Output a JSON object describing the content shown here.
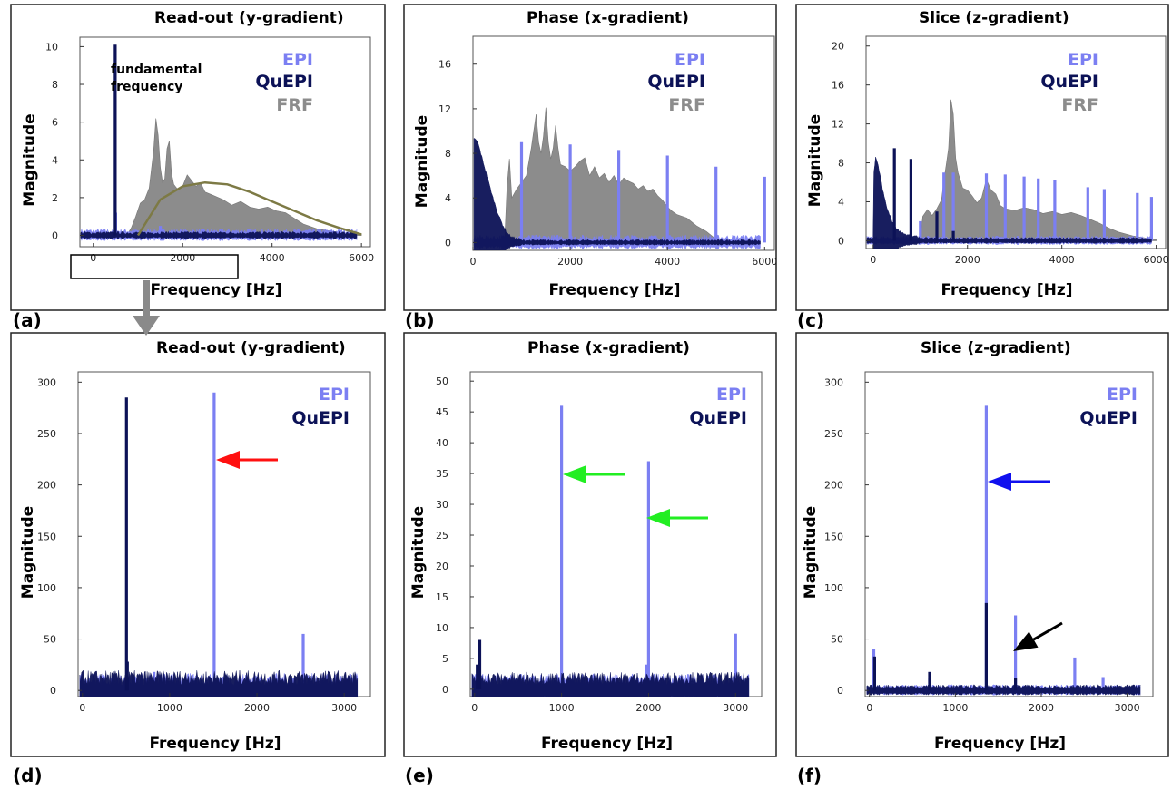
{
  "panel_letters": [
    "(a)",
    "(b)",
    "(c)",
    "(d)",
    "(e)",
    "(f)"
  ],
  "colors": {
    "epi": "#7b7ff2",
    "quepi": "#0c1257",
    "frf": "#8c8c8c",
    "fit": "#7d7a45",
    "red_arrow": "#ff1010",
    "green_arrow": "#22ee22",
    "blue_arrow": "#1010ee",
    "black_arrow": "#000000",
    "zoom_arrow": "#8a8a8a"
  },
  "chart_data": [
    {
      "panel": "(a)",
      "type": "area",
      "title": "Read-out (y-gradient)",
      "xlabel": "Frequency [Hz]",
      "ylabel": "Magnitude",
      "xlim": [
        -300,
        6200
      ],
      "x_ticks": [
        0,
        2000,
        4000,
        6000
      ],
      "y_ticks": [
        0,
        2,
        4,
        6,
        8,
        10
      ],
      "annotation": "fundamental\nfrequency",
      "legend": [
        "EPI",
        "QuEPI",
        "FRF"
      ],
      "series": [
        {
          "name": "EPI",
          "noise": 0.25,
          "peaks": [
            [
              500,
              1.2
            ],
            [
              1500,
              0.5
            ]
          ]
        },
        {
          "name": "QuEPI",
          "noise": 0.15,
          "peaks": [
            [
              490,
              10.1
            ]
          ]
        },
        {
          "name": "FRF",
          "points": [
            [
              750,
              0
            ],
            [
              850,
              0.4
            ],
            [
              950,
              1.0
            ],
            [
              1050,
              1.7
            ],
            [
              1150,
              1.9
            ],
            [
              1250,
              2.5
            ],
            [
              1350,
              4.5
            ],
            [
              1400,
              6.2
            ],
            [
              1450,
              5.3
            ],
            [
              1500,
              3.6
            ],
            [
              1550,
              2.8
            ],
            [
              1600,
              3.0
            ],
            [
              1650,
              4.6
            ],
            [
              1700,
              5.0
            ],
            [
              1750,
              3.3
            ],
            [
              1800,
              2.7
            ],
            [
              1900,
              2.4
            ],
            [
              2000,
              2.6
            ],
            [
              2100,
              3.2
            ],
            [
              2200,
              2.9
            ],
            [
              2300,
              2.6
            ],
            [
              2400,
              2.8
            ],
            [
              2500,
              2.3
            ],
            [
              2700,
              2.1
            ],
            [
              2900,
              1.9
            ],
            [
              3100,
              1.6
            ],
            [
              3300,
              1.8
            ],
            [
              3500,
              1.5
            ],
            [
              3700,
              1.4
            ],
            [
              3900,
              1.5
            ],
            [
              4100,
              1.3
            ],
            [
              4300,
              1.2
            ],
            [
              4500,
              0.9
            ],
            [
              4700,
              0.6
            ],
            [
              5000,
              0.35
            ],
            [
              5500,
              0.15
            ],
            [
              6000,
              0.05
            ]
          ]
        },
        {
          "name": "fit",
          "points": [
            [
              1000,
              0
            ],
            [
              1500,
              1.9
            ],
            [
              2000,
              2.6
            ],
            [
              2500,
              2.8
            ],
            [
              3000,
              2.7
            ],
            [
              3500,
              2.3
            ],
            [
              4000,
              1.8
            ],
            [
              4500,
              1.3
            ],
            [
              5000,
              0.8
            ],
            [
              5500,
              0.4
            ],
            [
              6000,
              0.05
            ]
          ]
        }
      ]
    },
    {
      "panel": "(b)",
      "type": "area",
      "title": "Phase (x-gradient)",
      "xlabel": "Frequency [Hz]",
      "ylabel": "Magnitude",
      "xlim": [
        0,
        6200
      ],
      "ylim": [
        -0.7,
        18.5
      ],
      "x_ticks": [
        0,
        2000,
        4000,
        6000
      ],
      "y_ticks": [
        0,
        4,
        8,
        12,
        16
      ],
      "legend": [
        "EPI",
        "QuEPI",
        "FRF"
      ],
      "series": [
        {
          "name": "EPI",
          "noise": 0.5,
          "peaks": [
            [
              1000,
              9
            ],
            [
              2000,
              8.8
            ],
            [
              3000,
              8.3
            ],
            [
              4000,
              7.8
            ],
            [
              5000,
              6.8
            ],
            [
              6000,
              5.9
            ]
          ]
        },
        {
          "name": "QuEPI",
          "noise": 0.2,
          "decay": [
            [
              0,
              9.3
            ],
            [
              100,
              8.8
            ],
            [
              200,
              7.2
            ],
            [
              300,
              5.6
            ],
            [
              400,
              4.0
            ],
            [
              500,
              2.6
            ],
            [
              600,
              1.5
            ],
            [
              700,
              0.7
            ],
            [
              800,
              0.3
            ],
            [
              1000,
              0.1
            ]
          ]
        },
        {
          "name": "FRF",
          "points": [
            [
              650,
              0
            ],
            [
              700,
              5
            ],
            [
              750,
              7.5
            ],
            [
              800,
              4
            ],
            [
              900,
              4.8
            ],
            [
              1000,
              5.4
            ],
            [
              1100,
              6
            ],
            [
              1200,
              8.5
            ],
            [
              1250,
              10
            ],
            [
              1300,
              11.5
            ],
            [
              1350,
              9
            ],
            [
              1400,
              8
            ],
            [
              1450,
              9.5
            ],
            [
              1500,
              12.1
            ],
            [
              1550,
              9
            ],
            [
              1600,
              7.5
            ],
            [
              1650,
              8.5
            ],
            [
              1700,
              10.5
            ],
            [
              1750,
              8.5
            ],
            [
              1800,
              7
            ],
            [
              1900,
              6.8
            ],
            [
              2000,
              6.4
            ],
            [
              2100,
              6.8
            ],
            [
              2200,
              7.3
            ],
            [
              2300,
              7.6
            ],
            [
              2400,
              6
            ],
            [
              2500,
              6.8
            ],
            [
              2600,
              5.8
            ],
            [
              2700,
              6.2
            ],
            [
              2800,
              5.4
            ],
            [
              2900,
              6
            ],
            [
              3000,
              5.2
            ],
            [
              3100,
              5.8
            ],
            [
              3200,
              5.5
            ],
            [
              3300,
              5.3
            ],
            [
              3400,
              4.8
            ],
            [
              3500,
              5.1
            ],
            [
              3600,
              4.6
            ],
            [
              3700,
              4.8
            ],
            [
              3800,
              4.2
            ],
            [
              3900,
              3.8
            ],
            [
              4000,
              3.2
            ],
            [
              4100,
              2.8
            ],
            [
              4200,
              2.5
            ],
            [
              4400,
              2.2
            ],
            [
              4600,
              1.5
            ],
            [
              4800,
              1.0
            ],
            [
              5000,
              0.3
            ],
            [
              5200,
              0
            ]
          ]
        }
      ]
    },
    {
      "panel": "(c)",
      "type": "area",
      "title": "Slice (z-gradient)",
      "xlabel": "Frequency [Hz]",
      "ylabel": "Magnitude",
      "xlim": [
        -150,
        6200
      ],
      "ylim": [
        -0.8,
        21
      ],
      "x_ticks": [
        0,
        2000,
        4000,
        6000
      ],
      "y_ticks": [
        0,
        4,
        8,
        12,
        16,
        20
      ],
      "legend": [
        "EPI",
        "QuEPI",
        "FRF"
      ],
      "series": [
        {
          "name": "EPI",
          "noise": 0.35,
          "peaks": [
            [
              1000,
              2
            ],
            [
              1500,
              7
            ],
            [
              1700,
              7
            ],
            [
              2400,
              6.9
            ],
            [
              2800,
              6.8
            ],
            [
              3200,
              6.6
            ],
            [
              3500,
              6.4
            ],
            [
              3850,
              6.2
            ],
            [
              4550,
              5.5
            ],
            [
              4900,
              5.3
            ],
            [
              5600,
              4.9
            ],
            [
              5900,
              4.5
            ]
          ]
        },
        {
          "name": "QuEPI",
          "noise": 0.25,
          "decay": [
            [
              0,
              6
            ],
            [
              50,
              8.3
            ],
            [
              100,
              7.6
            ],
            [
              150,
              6.5
            ],
            [
              200,
              5
            ],
            [
              300,
              3
            ],
            [
              400,
              1.8
            ],
            [
              500,
              1
            ],
            [
              700,
              0.4
            ],
            [
              1000,
              0.1
            ]
          ],
          "peaks": [
            [
              450,
              9.5
            ],
            [
              800,
              8.4
            ],
            [
              1350,
              3
            ],
            [
              1700,
              1
            ]
          ]
        },
        {
          "name": "FRF",
          "points": [
            [
              1000,
              0
            ],
            [
              1050,
              2.5
            ],
            [
              1150,
              3.2
            ],
            [
              1250,
              2.6
            ],
            [
              1350,
              3.3
            ],
            [
              1450,
              4.2
            ],
            [
              1500,
              6.2
            ],
            [
              1550,
              7.8
            ],
            [
              1600,
              9.5
            ],
            [
              1650,
              14.5
            ],
            [
              1700,
              13
            ],
            [
              1750,
              8.5
            ],
            [
              1800,
              7
            ],
            [
              1900,
              5.4
            ],
            [
              2000,
              5.2
            ],
            [
              2100,
              4.6
            ],
            [
              2200,
              3.9
            ],
            [
              2300,
              4.4
            ],
            [
              2400,
              6.3
            ],
            [
              2500,
              5.2
            ],
            [
              2600,
              4.8
            ],
            [
              2700,
              3.6
            ],
            [
              2800,
              3.3
            ],
            [
              3000,
              3.1
            ],
            [
              3200,
              3.4
            ],
            [
              3400,
              3.2
            ],
            [
              3600,
              2.8
            ],
            [
              3800,
              3.0
            ],
            [
              4000,
              2.7
            ],
            [
              4200,
              2.9
            ],
            [
              4400,
              2.6
            ],
            [
              4600,
              2.2
            ],
            [
              4800,
              1.8
            ],
            [
              5000,
              1.3
            ],
            [
              5200,
              0.9
            ],
            [
              5500,
              0.5
            ],
            [
              6000,
              0.1
            ]
          ]
        }
      ]
    },
    {
      "panel": "(d)",
      "type": "line",
      "title": "Read-out (y-gradient)",
      "xlabel": "Frequency [Hz]",
      "ylabel": "Magnitude",
      "xlim": [
        -50,
        3300
      ],
      "x_ticks": [
        0,
        1000,
        2000,
        3000
      ],
      "y_ticks": [
        0,
        50,
        100,
        150,
        200,
        250,
        300
      ],
      "legend": [
        "EPI",
        "QuEPI"
      ],
      "series": [
        {
          "name": "EPI",
          "noise": 12,
          "peaks": [
            [
              1510,
              290
            ],
            [
              2530,
              55
            ],
            [
              820,
              18
            ]
          ]
        },
        {
          "name": "QuEPI",
          "noise": 14,
          "peaks": [
            [
              505,
              285
            ],
            [
              515,
              28
            ]
          ]
        }
      ]
    },
    {
      "panel": "(e)",
      "type": "line",
      "title": "Phase (x-gradient)",
      "xlabel": "Frequency [Hz]",
      "ylabel": "Magnitude",
      "xlim": [
        -50,
        3300
      ],
      "x_ticks": [
        0,
        1000,
        2000,
        3000
      ],
      "y_ticks": [
        0,
        5,
        10,
        15,
        20,
        25,
        30,
        35,
        40,
        45,
        50
      ],
      "legend": [
        "EPI",
        "QuEPI"
      ],
      "series": [
        {
          "name": "EPI",
          "noise": 1.8,
          "peaks": [
            [
              1000,
              46
            ],
            [
              2000,
              37
            ],
            [
              3000,
              9
            ],
            [
              1980,
              4
            ]
          ]
        },
        {
          "name": "QuEPI",
          "noise": 2.0,
          "peaks": [
            [
              60,
              8
            ],
            [
              30,
              4
            ]
          ]
        }
      ]
    },
    {
      "panel": "(f)",
      "type": "line",
      "title": "Slice (z-gradient)",
      "xlabel": "Frequency [Hz]",
      "ylabel": "Magnitude",
      "xlim": [
        -50,
        3300
      ],
      "x_ticks": [
        0,
        1000,
        2000,
        3000
      ],
      "y_ticks": [
        0,
        50,
        100,
        150,
        200,
        250,
        300
      ],
      "legend": [
        "EPI",
        "QuEPI"
      ],
      "series": [
        {
          "name": "EPI",
          "noise": 4,
          "peaks": [
            [
              1360,
              277
            ],
            [
              1700,
              73
            ],
            [
              2390,
              32
            ],
            [
              2720,
              13
            ],
            [
              50,
              40
            ],
            [
              700,
              12
            ]
          ]
        },
        {
          "name": "QuEPI",
          "noise": 4,
          "peaks": [
            [
              1360,
              85
            ],
            [
              60,
              33
            ],
            [
              700,
              18
            ],
            [
              1700,
              12
            ]
          ]
        }
      ]
    }
  ]
}
